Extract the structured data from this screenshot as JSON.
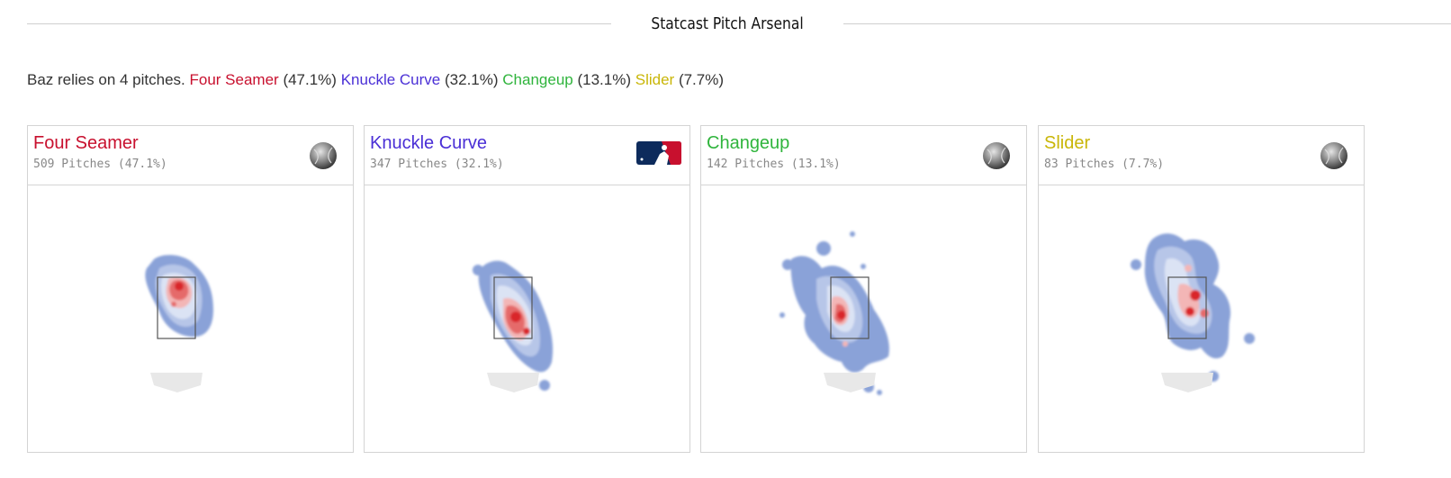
{
  "header": {
    "title": "Statcast Pitch Arsenal"
  },
  "summary": {
    "lead": "Baz relies on 4 pitches.",
    "items": [
      {
        "name": "Four Seamer",
        "pct": "(47.1%)",
        "color": "#c8102e"
      },
      {
        "name": "Knuckle Curve",
        "pct": "(32.1%)",
        "color": "#4a2fd6"
      },
      {
        "name": "Changeup",
        "pct": "(13.1%)",
        "color": "#2fb43c"
      },
      {
        "name": "Slider",
        "pct": "(7.7%)",
        "color": "#c9b608"
      }
    ]
  },
  "cards": [
    {
      "name": "Four Seamer",
      "count": "509 Pitches (47.1%)",
      "color": "#c8102e",
      "icon": "baseball-icon"
    },
    {
      "name": "Knuckle Curve",
      "count": "347 Pitches (32.1%)",
      "color": "#4a2fd6",
      "icon": "mlb-logo-icon"
    },
    {
      "name": "Changeup",
      "count": "142 Pitches (13.1%)",
      "color": "#2fb43c",
      "icon": "baseball-icon"
    },
    {
      "name": "Slider",
      "count": "83 Pitches (7.7%)",
      "color": "#c9b608",
      "icon": "baseball-icon"
    }
  ],
  "colors": {
    "heat_low": "#8aa2d8",
    "heat_mid": "#dbe3f4",
    "heat_high": "#f3b6b6",
    "heat_peak": "#d9262b",
    "plate": "#e8e8e8"
  }
}
